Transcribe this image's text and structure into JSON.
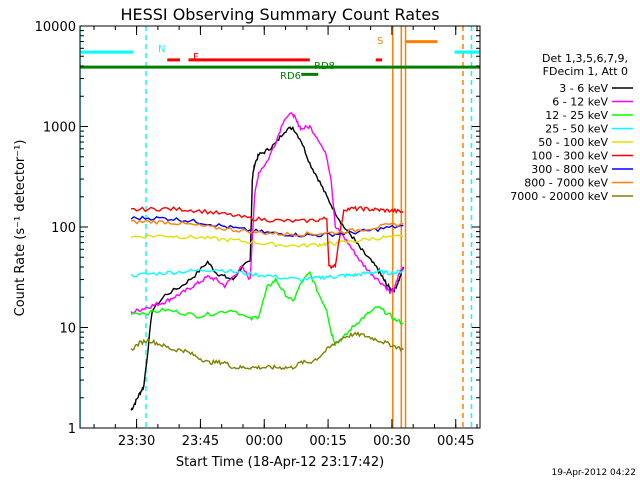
{
  "chart_data": {
    "type": "line",
    "title": "HESSI Observing Summary Count Rates",
    "xlabel": "Start Time (18-Apr-12 23:17:42)",
    "ylabel": "Count Rate (s⁻¹ detector⁻¹)",
    "y_scale": "log",
    "ylim": [
      1,
      10000
    ],
    "y_ticks": [
      {
        "value": 1,
        "label": "1"
      },
      {
        "value": 10,
        "label": "10"
      },
      {
        "value": 100,
        "label": "100"
      },
      {
        "value": 1000,
        "label": "1000"
      },
      {
        "value": 10000,
        "label": "10000"
      }
    ],
    "x_range_minutes_after_start": [
      0,
      94
    ],
    "x_ticks": [
      {
        "minute": 13.3,
        "label": "23:30"
      },
      {
        "minute": 28.3,
        "label": "23:45"
      },
      {
        "minute": 43.3,
        "label": "00:00"
      },
      {
        "minute": 58.3,
        "label": "00:15"
      },
      {
        "minute": 73.3,
        "label": "00:30"
      },
      {
        "minute": 88.3,
        "label": "00:45"
      }
    ],
    "legend": {
      "placement": "right",
      "header": [
        "Det 1,3,5,6,7,9,",
        "FDecim 1, Att 0"
      ],
      "entries": [
        {
          "label": "3 - 6 keV",
          "color": "#000000"
        },
        {
          "label": "6 - 12 keV",
          "color": "#ff00ff"
        },
        {
          "label": "12 - 25 keV",
          "color": "#00ff00"
        },
        {
          "label": "25 - 50 keV",
          "color": "#00ffff"
        },
        {
          "label": "50 - 100 keV",
          "color": "#e0e000"
        },
        {
          "label": "100 - 300 keV",
          "color": "#ff0000"
        },
        {
          "label": "300 - 800 keV",
          "color": "#0000ff"
        },
        {
          "label": "800 - 7000 keV",
          "color": "#ff8000"
        },
        {
          "label": "7000 - 20000 keV",
          "color": "#808000"
        }
      ]
    },
    "series": [
      {
        "name": "3 - 6 keV",
        "color": "#000000",
        "x": [
          12,
          13,
          14,
          15,
          17,
          20,
          24,
          27,
          30,
          32,
          34,
          36,
          38,
          40,
          40.5,
          41,
          42,
          44,
          46,
          48,
          50,
          52,
          54,
          56,
          58,
          60,
          62,
          64,
          66,
          68,
          70,
          71,
          72,
          73,
          74,
          75,
          76
        ],
        "y": [
          1.5,
          1.8,
          2.2,
          2.6,
          15,
          21,
          26,
          33,
          45,
          35,
          32,
          30,
          40,
          45,
          300,
          420,
          520,
          580,
          680,
          900,
          980,
          720,
          430,
          300,
          200,
          140,
          100,
          80,
          60,
          48,
          38,
          32,
          27,
          24,
          24,
          30,
          40
        ]
      },
      {
        "name": "6 - 12 keV",
        "color": "#ff00ff",
        "x": [
          12,
          14,
          16,
          18,
          20,
          22,
          24,
          26,
          28,
          30,
          32,
          34,
          36,
          38,
          40,
          41,
          42,
          44,
          46,
          48,
          50,
          51,
          52,
          54,
          56,
          58,
          59,
          60,
          62,
          64,
          66,
          68,
          70,
          72,
          73,
          74,
          75,
          76
        ],
        "y": [
          14,
          15,
          16,
          17,
          18,
          20,
          22,
          25,
          28,
          32,
          30,
          26,
          32,
          40,
          30,
          200,
          350,
          450,
          700,
          1200,
          1350,
          1100,
          950,
          1000,
          750,
          500,
          300,
          100,
          80,
          60,
          45,
          36,
          30,
          25,
          22,
          25,
          35,
          40
        ]
      },
      {
        "name": "12 - 25 keV",
        "color": "#00ff00",
        "x": [
          12,
          16,
          20,
          24,
          28,
          32,
          36,
          40,
          42,
          44,
          46,
          48,
          50,
          52,
          54,
          56,
          58,
          59,
          60,
          62,
          64,
          66,
          68,
          70,
          72,
          74,
          76
        ],
        "y": [
          14,
          14,
          15,
          14,
          13,
          14,
          15,
          12,
          13,
          25,
          30,
          22,
          18,
          28,
          35,
          22,
          15,
          9,
          7,
          8,
          10,
          12,
          14,
          16,
          14,
          12,
          11
        ]
      },
      {
        "name": "25 - 50 keV",
        "color": "#00ffff",
        "x": [
          12,
          16,
          20,
          24,
          28,
          32,
          36,
          40,
          44,
          48,
          52,
          56,
          58,
          60,
          62,
          64,
          66,
          68,
          70,
          72,
          74,
          76
        ],
        "y": [
          33,
          34,
          35,
          36,
          37,
          38,
          36,
          34,
          33,
          31,
          30,
          31,
          32,
          32,
          33,
          33,
          34,
          35,
          36,
          35,
          35,
          37
        ]
      },
      {
        "name": "50 - 100 keV",
        "color": "#e0e000",
        "x": [
          12,
          16,
          20,
          24,
          28,
          32,
          36,
          40,
          44,
          48,
          52,
          56,
          58,
          60,
          64,
          68,
          72,
          76
        ],
        "y": [
          80,
          81,
          82,
          80,
          79,
          76,
          74,
          71,
          68,
          66,
          65,
          67,
          68,
          69,
          72,
          76,
          79,
          80
        ]
      },
      {
        "name": "100 - 300 keV",
        "color": "#ff0000",
        "x": [
          12,
          16,
          20,
          24,
          28,
          32,
          36,
          40,
          44,
          48,
          52,
          56,
          58,
          58.5,
          60,
          62,
          64,
          66,
          68,
          70,
          72,
          74,
          76
        ],
        "y": [
          148,
          150,
          152,
          150,
          145,
          138,
          130,
          122,
          118,
          115,
          114,
          118,
          122,
          40,
          42,
          150,
          152,
          152,
          150,
          148,
          146,
          145,
          140
        ]
      },
      {
        "name": "300 - 800 keV",
        "color": "#0000ff",
        "x": [
          12,
          16,
          20,
          24,
          28,
          32,
          36,
          40,
          44,
          48,
          52,
          56,
          60,
          64,
          68,
          72,
          76
        ],
        "y": [
          122,
          123,
          122,
          118,
          112,
          105,
          98,
          92,
          88,
          85,
          83,
          83,
          85,
          88,
          92,
          98,
          103
        ]
      },
      {
        "name": "800 - 7000 keV",
        "color": "#ff8000",
        "x": [
          12,
          16,
          20,
          24,
          28,
          32,
          36,
          40,
          44,
          48,
          52,
          56,
          60,
          64,
          68,
          72,
          76
        ],
        "y": [
          112,
          113,
          112,
          108,
          103,
          98,
          94,
          90,
          87,
          85,
          85,
          86,
          88,
          92,
          97,
          103,
          108
        ]
      },
      {
        "name": "7000 - 20000 keV",
        "color": "#808000",
        "x": [
          12,
          14,
          16,
          18,
          20,
          22,
          24,
          26,
          28,
          30,
          32,
          34,
          36,
          38,
          40,
          42,
          44,
          46,
          48,
          50,
          52,
          54,
          56,
          58,
          60,
          62,
          64,
          66,
          68,
          70,
          72,
          74,
          76
        ],
        "y": [
          6,
          7,
          7.5,
          7,
          6.5,
          6,
          6,
          5.5,
          5,
          4.5,
          4.5,
          4.5,
          4,
          4,
          4,
          4,
          4,
          4,
          4,
          4,
          4.5,
          4.5,
          5,
          6,
          7,
          8,
          8.5,
          8.5,
          8,
          7.5,
          7,
          6.5,
          6
        ]
      }
    ],
    "flags": [
      {
        "label": "N",
        "color": "#00ffff",
        "segments": [
          [
            0,
            12.5
          ],
          [
            88,
            94
          ]
        ],
        "level": 5500
      },
      {
        "label": "S",
        "color": "#ff8000",
        "segments": [
          [
            76.5,
            84
          ]
        ],
        "level": 7000
      },
      {
        "label": "F",
        "color": "#ff0000",
        "segments": [
          [
            20.5,
            23.5
          ],
          [
            25.5,
            54
          ],
          [
            69.5,
            71
          ]
        ],
        "level": 4600
      },
      {
        "label": "RD6",
        "color": "#008000",
        "segments": [
          [
            52,
            56
          ]
        ],
        "level": 3300
      },
      {
        "label": "RD8",
        "color": "#008000",
        "segments": [
          [
            0,
            94
          ]
        ],
        "level": 3900
      }
    ],
    "vertical_lines": [
      {
        "minute": 0,
        "color": "#00ffff",
        "style": "solid"
      },
      {
        "minute": 15.5,
        "color": "#00ffff",
        "style": "dashed"
      },
      {
        "minute": 75.5,
        "color": "#ff8000",
        "style": "solid"
      },
      {
        "minute": 76.5,
        "color": "#ff8000",
        "style": "solid"
      },
      {
        "minute": 90.0,
        "color": "#ff8000",
        "style": "dashed"
      },
      {
        "minute": 92.0,
        "color": "#00ffff",
        "style": "dashed"
      },
      {
        "minute": 73.5,
        "color": "#ff8000",
        "style": "solid"
      }
    ],
    "footer_timestamp": "19-Apr-2012 04:22"
  }
}
